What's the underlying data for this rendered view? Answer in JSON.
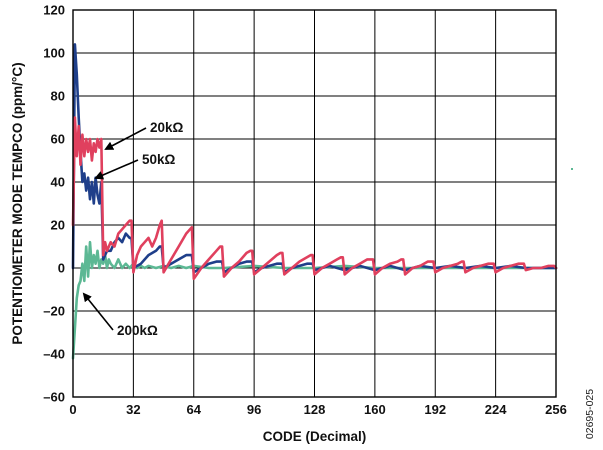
{
  "figure_id": "02695-025",
  "chart_data": {
    "type": "line",
    "xlabel": "CODE (Decimal)",
    "ylabel": "POTENTIOMETER MODE TEMPCO (ppm/°C)",
    "xlim": [
      0,
      256
    ],
    "ylim": [
      -60,
      120
    ],
    "x_ticks": [
      "0",
      "32",
      "64",
      "96",
      "128",
      "160",
      "192",
      "224",
      "256"
    ],
    "y_ticks": [
      "120",
      "100",
      "80",
      "60",
      "40",
      "20",
      "0",
      "–20",
      "–40",
      "–60"
    ],
    "grid": true,
    "legend": "none",
    "annotations": [
      {
        "text": "20kΩ",
        "series": "20kΩ"
      },
      {
        "text": "50kΩ",
        "series": "50kΩ"
      },
      {
        "text": "200kΩ",
        "series": "200kΩ"
      }
    ],
    "series": [
      {
        "name": "20kΩ",
        "color": "#e0405e",
        "x": [
          0,
          1,
          2,
          3,
          4,
          5,
          6,
          7,
          8,
          9,
          10,
          11,
          12,
          13,
          14,
          15,
          16,
          17,
          18,
          20,
          22,
          24,
          26,
          28,
          30,
          31,
          32,
          34,
          36,
          38,
          40,
          42,
          44,
          46,
          47,
          48,
          52,
          56,
          60,
          62,
          63,
          64,
          68,
          72,
          76,
          78,
          79,
          80,
          84,
          88,
          92,
          94,
          95,
          96,
          100,
          104,
          108,
          110,
          111,
          112,
          116,
          120,
          124,
          126,
          127,
          128,
          132,
          136,
          140,
          142,
          143,
          144,
          148,
          152,
          156,
          158,
          159,
          160,
          164,
          168,
          172,
          174,
          175,
          176,
          180,
          184,
          188,
          190,
          191,
          192,
          196,
          200,
          204,
          206,
          207,
          208,
          212,
          216,
          220,
          222,
          223,
          224,
          228,
          232,
          236,
          238,
          239,
          240,
          244,
          248,
          252,
          254,
          255,
          256
        ],
        "y": [
          20,
          70,
          52,
          66,
          48,
          62,
          52,
          60,
          54,
          60,
          50,
          58,
          54,
          60,
          56,
          60,
          6,
          12,
          8,
          12,
          10,
          16,
          18,
          20,
          22,
          22,
          -2,
          6,
          10,
          12,
          14,
          10,
          14,
          20,
          22,
          -2,
          4,
          10,
          16,
          18,
          19,
          -5,
          0,
          4,
          8,
          10,
          10,
          -4,
          0,
          3,
          7,
          8,
          8,
          -3,
          0,
          3,
          6,
          7,
          7,
          -3,
          0,
          3,
          5,
          6,
          6,
          -3,
          0,
          2,
          4,
          5,
          5,
          -3,
          0,
          2,
          4,
          4,
          4,
          -3,
          0,
          2,
          3,
          4,
          4,
          -3,
          0,
          1,
          3,
          3,
          3,
          -2,
          0,
          1,
          2,
          3,
          3,
          -2,
          0,
          1,
          2,
          2,
          2,
          -2,
          0,
          1,
          2,
          2,
          2,
          -1,
          0,
          0,
          1,
          1,
          1,
          0
        ]
      },
      {
        "name": "50kΩ",
        "color": "#1f3f8a",
        "x": [
          0,
          1,
          2,
          3,
          4,
          5,
          6,
          7,
          8,
          9,
          10,
          11,
          12,
          13,
          14,
          15,
          16,
          18,
          20,
          22,
          24,
          26,
          28,
          30,
          31,
          32,
          36,
          40,
          44,
          46,
          47,
          48,
          52,
          56,
          60,
          63,
          64,
          68,
          72,
          76,
          79,
          80,
          84,
          88,
          92,
          95,
          96,
          100,
          104,
          108,
          111,
          112,
          116,
          120,
          124,
          127,
          128,
          136,
          144,
          152,
          160,
          168,
          176,
          184,
          192,
          200,
          208,
          216,
          224,
          232,
          240,
          248,
          256
        ],
        "y": [
          0,
          104,
          90,
          70,
          54,
          40,
          44,
          36,
          42,
          32,
          40,
          30,
          42,
          34,
          30,
          40,
          4,
          8,
          8,
          12,
          14,
          12,
          16,
          14,
          14,
          0,
          2,
          6,
          8,
          10,
          10,
          0,
          2,
          4,
          6,
          6,
          -2,
          0,
          2,
          3,
          3,
          -2,
          0,
          2,
          3,
          3,
          -2,
          0,
          1,
          2,
          2,
          -2,
          0,
          1,
          2,
          2,
          -1,
          1,
          -1,
          1,
          -1,
          1,
          -1,
          1,
          0,
          1,
          0,
          1,
          0,
          1,
          0,
          0,
          0
        ]
      },
      {
        "name": "200kΩ",
        "color": "#5cb894",
        "x": [
          0,
          1,
          2,
          3,
          4,
          5,
          6,
          7,
          8,
          9,
          10,
          11,
          12,
          13,
          14,
          15,
          16,
          17,
          18,
          19,
          20,
          22,
          24,
          26,
          28,
          30,
          32,
          34,
          36,
          38,
          40,
          44,
          48,
          52,
          56,
          60,
          64,
          72,
          80,
          96,
          112,
          128,
          144,
          160,
          176,
          192,
          208,
          224,
          240,
          256
        ],
        "y": [
          -42,
          -28,
          -14,
          -8,
          -6,
          2,
          -6,
          10,
          -4,
          12,
          0,
          6,
          2,
          8,
          0,
          4,
          2,
          6,
          0,
          4,
          2,
          0,
          4,
          0,
          2,
          0,
          2,
          0,
          1,
          0,
          1,
          0,
          1,
          0,
          1,
          0,
          1,
          0,
          0,
          1,
          0,
          0,
          1,
          0,
          0,
          0,
          0,
          0,
          0,
          0
        ]
      }
    ]
  }
}
